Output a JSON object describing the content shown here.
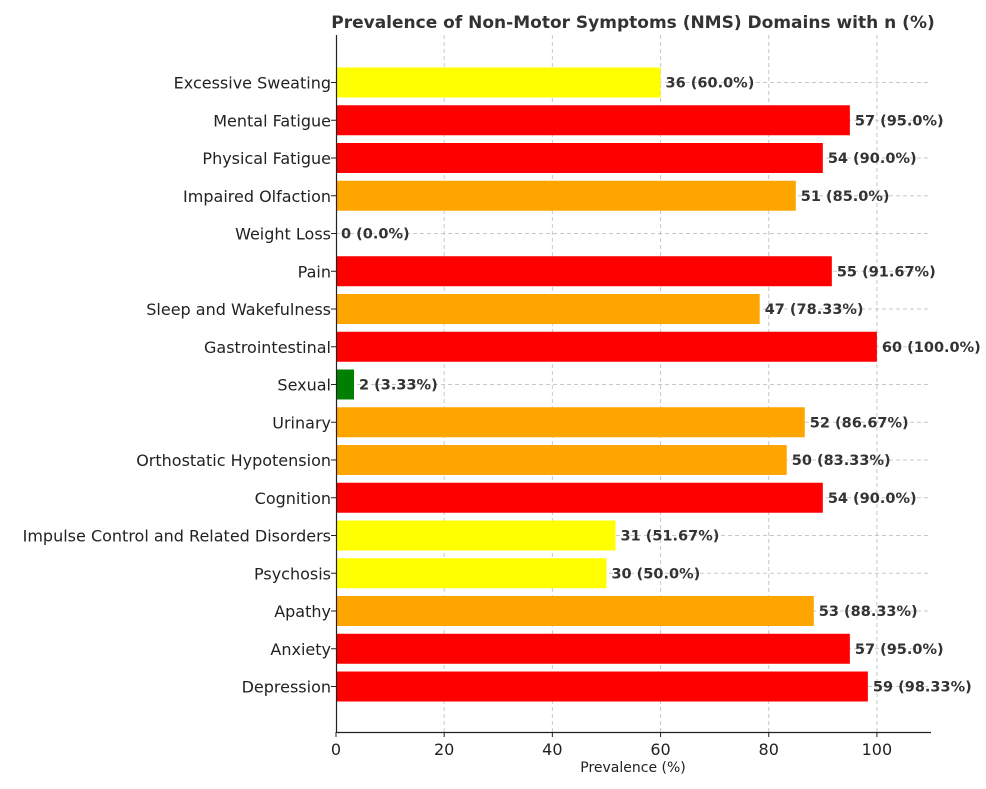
{
  "chart_data": {
    "type": "bar",
    "orientation": "horizontal",
    "title": "Prevalence of Non-Motor Symptoms (NMS) Domains with n (%)",
    "xlabel": "Prevalence (%)",
    "ylabel": "",
    "xlim": [
      0,
      110
    ],
    "xticks": [
      0,
      20,
      40,
      60,
      80,
      100
    ],
    "grid": true,
    "categories": [
      "Depression",
      "Anxiety",
      "Apathy",
      "Psychosis",
      "Impulse Control and Related Disorders",
      "Cognition",
      "Orthostatic Hypotension",
      "Urinary",
      "Sexual",
      "Gastrointestinal",
      "Sleep and Wakefulness",
      "Pain",
      "Weight Loss",
      "Impaired Olfaction",
      "Physical Fatigue",
      "Mental Fatigue",
      "Excessive Sweating"
    ],
    "values": [
      98.33,
      95.0,
      88.33,
      50.0,
      51.67,
      90.0,
      83.33,
      86.67,
      3.33,
      100.0,
      78.33,
      91.67,
      0.0,
      85.0,
      90.0,
      95.0,
      60.0
    ],
    "labels": [
      "59 (98.33%)",
      "57 (95.0%)",
      "53 (88.33%)",
      "30 (50.0%)",
      "31 (51.67%)",
      "54 (90.0%)",
      "50 (83.33%)",
      "52 (86.67%)",
      "2 (3.33%)",
      "60 (100.0%)",
      "47 (78.33%)",
      "55 (91.67%)",
      "0 (0.0%)",
      "51 (85.0%)",
      "54 (90.0%)",
      "57 (95.0%)",
      "36 (60.0%)"
    ],
    "colors": [
      "#ff0000",
      "#ff0000",
      "#ffa500",
      "#ffff00",
      "#ffff00",
      "#ff0000",
      "#ffa500",
      "#ffa500",
      "#008000",
      "#ff0000",
      "#ffa500",
      "#ff0000",
      "#ff0000",
      "#ffa500",
      "#ff0000",
      "#ff0000",
      "#ffff00"
    ]
  }
}
